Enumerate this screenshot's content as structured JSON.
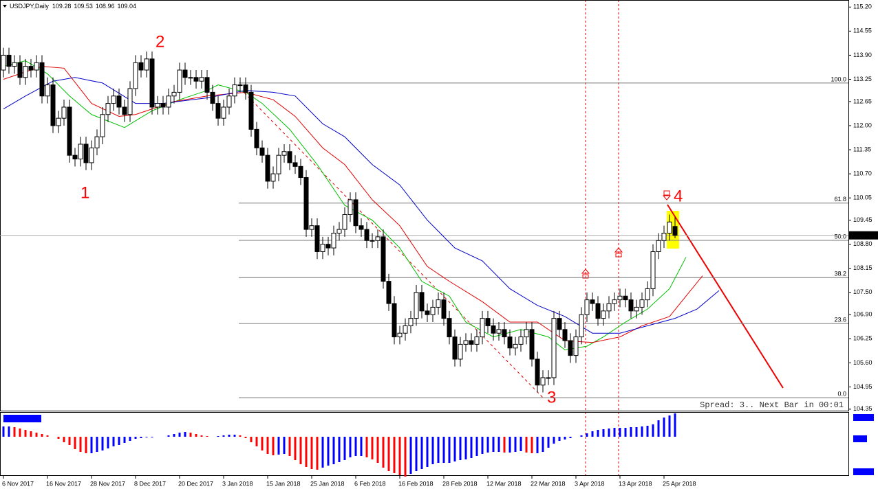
{
  "chart_data": {
    "type": "candlestick",
    "symbol": "USDJPY,Daily",
    "categories": [
      "6 Nov 2017",
      null,
      null,
      null,
      null,
      null,
      null,
      null,
      "16 Nov 2017",
      null,
      null,
      null,
      null,
      null,
      null,
      null,
      "28 Nov 2017",
      null,
      null,
      null,
      null,
      null,
      null,
      null,
      "8 Dec 2017",
      null,
      null,
      null,
      null,
      null,
      null,
      null,
      "20 Dec 2017",
      null,
      null,
      null,
      null,
      null,
      null,
      null,
      "3 Jan 2018",
      null,
      null,
      null,
      null,
      null,
      null,
      null,
      "15 Jan 2018",
      null,
      null,
      null,
      null,
      null,
      null,
      null,
      "25 Jan 2018",
      null,
      null,
      null,
      null,
      null,
      null,
      null,
      "6 Feb 2018",
      null,
      null,
      null,
      null,
      null,
      null,
      null,
      "16 Feb 2018",
      null,
      null,
      null,
      null,
      null,
      null,
      null,
      "28 Feb 2018",
      null,
      null,
      null,
      null,
      null,
      null,
      null,
      "12 Mar 2018",
      null,
      null,
      null,
      null,
      null,
      null,
      null,
      "22 Mar 2018",
      null,
      null,
      null,
      null,
      null,
      null,
      null,
      "3 Apr 2018",
      null,
      null,
      null,
      null,
      null,
      null,
      null,
      "13 Apr 2018",
      null,
      null,
      null,
      null,
      null,
      null,
      null,
      "25 Apr 2018",
      null,
      null
    ],
    "open": [
      113.5,
      113.9,
      113.6,
      113.7,
      113.3,
      113.6,
      113.5,
      113.7,
      112.8,
      113.1,
      112.0,
      112.2,
      112.5,
      111.2,
      111.1,
      111.5,
      111.0,
      111.4,
      111.7,
      112.3,
      112.6,
      112.8,
      112.5,
      112.3,
      113.0,
      113.7,
      113.5,
      113.8,
      112.5,
      112.6,
      112.5,
      112.8,
      112.9,
      113.5,
      113.3,
      113.3,
      113.2,
      113.3,
      112.9,
      112.6,
      112.2,
      112.5,
      112.8,
      113.1,
      113.1,
      112.9,
      111.9,
      111.4,
      111.2,
      110.5,
      110.7,
      111.2,
      111.3,
      111.0,
      110.9,
      110.6,
      109.2,
      109.3,
      108.6,
      108.8,
      108.7,
      109.1,
      109.2,
      109.6,
      110.0,
      109.3,
      109.2,
      108.9,
      108.9,
      109.0,
      107.8,
      107.2,
      106.3,
      106.4,
      106.6,
      106.8,
      107.5,
      107.0,
      106.9,
      107.1,
      107.3,
      106.8,
      106.3,
      105.7,
      106.1,
      106.2,
      106.1,
      106.3,
      106.8,
      106.6,
      106.4,
      106.5,
      106.3,
      106.0,
      106.1,
      106.3,
      106.5,
      105.7,
      105.0,
      105.2,
      105.2,
      106.8,
      106.5,
      106.2,
      105.8,
      106.3,
      106.9,
      107.3,
      107.2,
      106.8,
      107.0,
      107.2,
      107.3,
      107.4,
      107.3,
      107.0,
      107.1,
      107.3,
      107.6,
      108.6,
      108.9,
      109.1,
      109.28
    ],
    "high": [
      114.1,
      114.1,
      113.9,
      113.9,
      113.8,
      113.8,
      113.9,
      113.9,
      113.3,
      113.3,
      112.4,
      112.7,
      112.7,
      111.4,
      111.7,
      111.7,
      111.6,
      111.9,
      112.5,
      112.8,
      113.0,
      113.0,
      112.7,
      113.2,
      113.9,
      113.9,
      114.0,
      114.0,
      112.8,
      112.8,
      113.0,
      113.1,
      113.7,
      113.7,
      113.5,
      113.5,
      113.5,
      113.5,
      113.1,
      112.8,
      112.7,
      113.0,
      113.3,
      113.3,
      113.3,
      113.1,
      112.1,
      111.6,
      111.4,
      110.9,
      111.4,
      111.5,
      111.5,
      111.2,
      111.1,
      110.8,
      109.5,
      109.5,
      109.0,
      109.0,
      109.3,
      109.4,
      109.8,
      110.2,
      110.2,
      109.5,
      109.4,
      109.1,
      109.2,
      109.2,
      108.0,
      107.4,
      106.6,
      106.8,
      107.0,
      107.7,
      107.7,
      107.2,
      107.3,
      107.5,
      107.5,
      107.0,
      106.5,
      106.3,
      106.4,
      106.4,
      106.5,
      107.0,
      107.0,
      106.8,
      106.7,
      106.7,
      106.5,
      106.3,
      106.5,
      106.7,
      106.7,
      105.9,
      105.4,
      105.4,
      107.0,
      107.0,
      106.7,
      106.4,
      106.5,
      107.1,
      107.5,
      107.5,
      107.4,
      107.2,
      107.4,
      107.5,
      107.6,
      107.6,
      107.5,
      107.3,
      107.5,
      107.8,
      108.8,
      109.1,
      109.3,
      109.6,
      109.53
    ],
    "low": [
      113.3,
      113.4,
      113.4,
      113.1,
      113.1,
      113.3,
      113.3,
      112.6,
      112.6,
      111.8,
      111.8,
      112.0,
      111.0,
      110.9,
      110.9,
      110.8,
      110.8,
      111.2,
      111.5,
      112.1,
      112.4,
      112.3,
      112.1,
      112.1,
      112.8,
      113.3,
      113.3,
      112.3,
      112.3,
      112.3,
      112.3,
      112.6,
      112.7,
      113.1,
      113.1,
      113.0,
      113.0,
      112.7,
      112.4,
      112.0,
      112.0,
      112.3,
      112.6,
      112.9,
      112.7,
      111.7,
      111.2,
      111.0,
      110.3,
      110.3,
      110.5,
      111.0,
      110.8,
      110.7,
      110.4,
      109.0,
      109.0,
      108.4,
      108.4,
      108.5,
      108.5,
      108.9,
      109.0,
      109.4,
      109.1,
      109.0,
      108.7,
      108.7,
      108.7,
      107.6,
      107.0,
      106.1,
      106.1,
      106.2,
      106.4,
      106.6,
      106.8,
      106.7,
      106.7,
      106.9,
      106.6,
      106.1,
      105.5,
      105.5,
      105.9,
      105.9,
      105.9,
      106.1,
      106.4,
      106.2,
      106.2,
      106.1,
      105.8,
      105.8,
      105.9,
      106.1,
      105.5,
      104.8,
      104.8,
      105.0,
      105.0,
      106.3,
      106.0,
      105.6,
      105.6,
      106.1,
      106.7,
      107.0,
      106.6,
      106.6,
      106.8,
      107.0,
      107.1,
      107.1,
      106.8,
      106.8,
      106.9,
      107.1,
      107.4,
      108.4,
      108.7,
      108.9,
      108.96
    ],
    "close": [
      113.9,
      113.6,
      113.7,
      113.3,
      113.6,
      113.5,
      113.7,
      112.8,
      113.1,
      112.0,
      112.2,
      112.5,
      111.2,
      111.1,
      111.5,
      111.0,
      111.4,
      111.7,
      112.3,
      112.6,
      112.8,
      112.5,
      112.3,
      113.0,
      113.7,
      113.5,
      113.8,
      112.5,
      112.6,
      112.5,
      112.8,
      112.9,
      113.5,
      113.3,
      113.3,
      113.2,
      113.3,
      112.9,
      112.6,
      112.2,
      112.5,
      112.8,
      113.1,
      113.1,
      112.9,
      111.9,
      111.4,
      111.2,
      110.5,
      110.7,
      111.2,
      111.3,
      111.0,
      110.9,
      110.6,
      109.2,
      109.3,
      108.6,
      108.8,
      108.7,
      109.1,
      109.2,
      109.6,
      110.0,
      109.3,
      109.2,
      108.9,
      108.9,
      109.0,
      107.8,
      107.2,
      106.3,
      106.4,
      106.6,
      106.8,
      107.5,
      107.0,
      106.9,
      107.1,
      107.3,
      106.8,
      106.3,
      105.7,
      106.1,
      106.2,
      106.1,
      106.3,
      106.8,
      106.6,
      106.4,
      106.5,
      106.3,
      106.0,
      106.1,
      106.3,
      106.5,
      105.7,
      105.0,
      105.2,
      105.2,
      106.8,
      106.5,
      106.2,
      105.8,
      106.3,
      106.9,
      107.3,
      107.2,
      106.8,
      107.0,
      107.2,
      107.3,
      107.4,
      107.3,
      107.0,
      107.1,
      107.3,
      107.6,
      108.6,
      108.9,
      109.1,
      109.4,
      109.04
    ],
    "up_color": "#ffffff",
    "down_color": "#000000",
    "moving_averages": [
      {
        "color": "#00c000",
        "x": [
          0,
          4,
          8,
          12,
          16,
          22,
          27,
          32,
          37,
          39,
          44,
          47,
          52,
          57,
          62,
          67,
          72,
          76,
          81,
          84,
          89,
          94,
          99,
          102,
          106,
          109,
          113,
          117,
          121,
          124
        ],
        "values": [
          113.6,
          113.75,
          113.4,
          112.8,
          112.3,
          111.95,
          112.4,
          112.7,
          112.95,
          113.1,
          112.9,
          112.6,
          111.9,
          110.95,
          109.85,
          109.45,
          108.7,
          107.8,
          107.4,
          106.7,
          106.3,
          106.5,
          106.3,
          105.95,
          106.05,
          106.3,
          106.7,
          107.05,
          107.6,
          108.45
        ]
      },
      {
        "color": "#e00000",
        "x": [
          0,
          7,
          11,
          16,
          21,
          24,
          31,
          37,
          44,
          49,
          53,
          58,
          62,
          67,
          72,
          77,
          81,
          87,
          92,
          97,
          102,
          107,
          112,
          116,
          121,
          124,
          127
        ],
        "values": [
          113.25,
          113.6,
          113.55,
          112.6,
          112.25,
          112.3,
          112.65,
          112.8,
          112.9,
          112.7,
          112.25,
          111.4,
          110.95,
          110.0,
          109.3,
          108.2,
          107.8,
          107.25,
          106.7,
          106.7,
          106.2,
          106.15,
          106.3,
          106.6,
          106.85,
          107.4,
          107.95
        ]
      },
      {
        "color": "#0000c8",
        "x": [
          0,
          4,
          9,
          13,
          18,
          24,
          29,
          37,
          44,
          49,
          53,
          58,
          62,
          67,
          72,
          77,
          82,
          87,
          92,
          97,
          102,
          107,
          112,
          117,
          122,
          126,
          130
        ],
        "values": [
          112.45,
          112.8,
          113.2,
          113.3,
          113.15,
          112.6,
          112.6,
          112.75,
          112.95,
          112.9,
          112.8,
          112.05,
          111.7,
          110.95,
          110.4,
          109.45,
          108.7,
          108.35,
          107.6,
          107.15,
          106.85,
          106.4,
          106.4,
          106.6,
          106.8,
          107.05,
          107.55
        ]
      }
    ],
    "ylim": [
      104.31,
      115.39
    ],
    "yticks": [
      {
        "value": 115.2,
        "label": "115.20"
      },
      {
        "value": 114.55,
        "label": "114.55"
      },
      {
        "value": 113.9,
        "label": "113.90"
      },
      {
        "value": 113.25,
        "label": "113.25"
      },
      {
        "value": 112.65,
        "label": "112.65"
      },
      {
        "value": 112.0,
        "label": "112.00"
      },
      {
        "value": 111.35,
        "label": "111.35"
      },
      {
        "value": 110.7,
        "label": "110.70"
      },
      {
        "value": 110.05,
        "label": "110.05"
      },
      {
        "value": 109.45,
        "label": "109.45"
      },
      {
        "value": 108.8,
        "label": "108.80"
      },
      {
        "value": 108.15,
        "label": "108.15"
      },
      {
        "value": 107.5,
        "label": "107.50"
      },
      {
        "value": 106.9,
        "label": "106.90"
      },
      {
        "value": 106.25,
        "label": "106.25"
      },
      {
        "value": 105.6,
        "label": "105.60"
      },
      {
        "value": 104.95,
        "label": "104.95"
      },
      {
        "value": 104.35,
        "label": "104.35"
      }
    ],
    "fibonacci": [
      {
        "label": "100.0",
        "price": 113.15
      },
      {
        "label": "61.8",
        "price": 109.91
      },
      {
        "label": "50.0",
        "price": 108.905
      },
      {
        "label": "38.2",
        "price": 107.9
      },
      {
        "label": "23.6",
        "price": 106.66
      },
      {
        "label": "0.0",
        "price": 104.66
      }
    ],
    "annotations": [
      "1",
      "2",
      "3",
      "4"
    ],
    "status": "Spread: 3.. Next Bar in 00:01",
    "oscillator": {
      "type": "bar",
      "up_color": "#0000ff",
      "down_color": "#ff0000",
      "ylim": [
        -56,
        35
      ],
      "values": [
        15,
        15,
        14,
        12,
        10,
        8,
        6,
        4,
        2,
        0,
        -3,
        -8,
        -12,
        -18,
        -22,
        -24,
        -24,
        -22,
        -20,
        -17,
        -14,
        -12,
        -9,
        -6,
        -3,
        -2,
        -1,
        -1,
        0,
        0,
        2,
        4,
        6,
        7,
        6,
        4,
        2,
        1,
        0,
        1,
        2,
        3,
        3,
        2,
        -2,
        -8,
        -14,
        -20,
        -25,
        -27,
        -26,
        -25,
        -28,
        -34,
        -40,
        -44,
        -47,
        -48,
        -45,
        -42,
        -40,
        -37,
        -34,
        -30,
        -28,
        -28,
        -30,
        -33,
        -38,
        -45,
        -50,
        -53,
        -56,
        -58,
        -54,
        -50,
        -47,
        -44,
        -40,
        -38,
        -38,
        -38,
        -36,
        -34,
        -33,
        -31,
        -28,
        -25,
        -23,
        -22,
        -22,
        -23,
        -23,
        -22,
        -21,
        -23,
        -24,
        -24,
        -22,
        -16,
        -10,
        -6,
        -4,
        -2,
        0,
        2,
        5,
        8,
        10,
        11,
        12,
        13,
        13,
        13,
        14,
        14,
        15,
        16,
        18,
        24,
        28,
        31,
        34
      ]
    }
  }
}
